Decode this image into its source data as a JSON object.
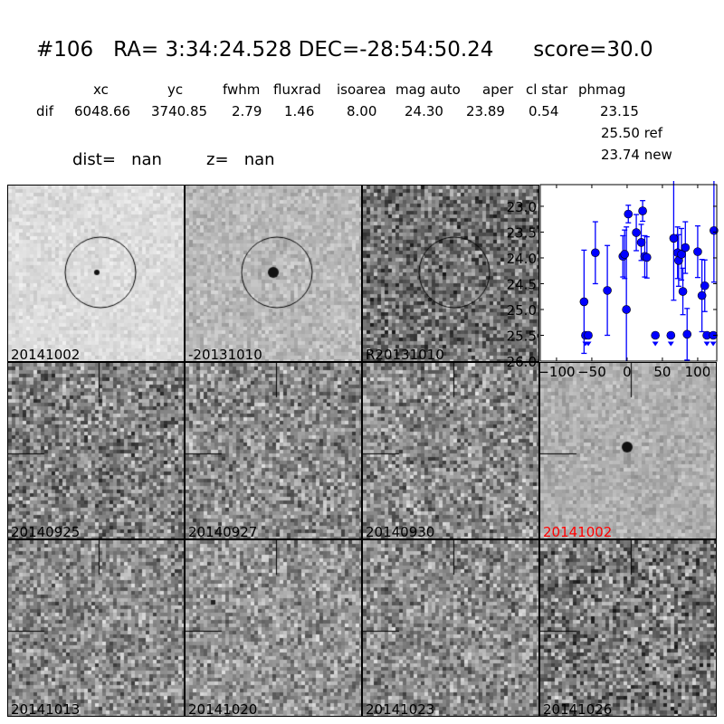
{
  "title": {
    "id": "#106",
    "ra": "RA= 3:34:24.528",
    "dec": "DEC=-28:54:50.24",
    "score": "score=30.0"
  },
  "table": {
    "headers": [
      "xc",
      "yc",
      "fwhm",
      "fluxrad",
      "isoarea",
      "mag auto",
      "aper",
      "cl star",
      "phmag"
    ],
    "row_label": "dif",
    "values": [
      "6048.66",
      "3740.85",
      "2.79",
      "1.46",
      "8.00",
      "24.30",
      "23.89",
      "0.54",
      "23.15"
    ],
    "ref": "25.50 ref",
    "new": "23.74 new"
  },
  "dist": "dist=   nan",
  "z": "z=   nan",
  "panels": [
    {
      "label": "20141002",
      "circle": true
    },
    {
      "label": "-20131010",
      "circle": true
    },
    {
      "label": "R20131010",
      "circle": true
    },
    {
      "label": "20140925"
    },
    {
      "label": "20140927"
    },
    {
      "label": "20140930"
    },
    {
      "label": "20141002",
      "color": "#ff0000"
    },
    {
      "label": "20141013"
    },
    {
      "label": "20141020"
    },
    {
      "label": "20141023"
    },
    {
      "label": "20141026"
    }
  ],
  "chart_data": {
    "type": "scatter",
    "xlim": [
      -123,
      127
    ],
    "ylim": [
      26.0,
      22.58
    ],
    "y_inverted": true,
    "xticks": [
      -100,
      -50,
      0,
      50,
      100
    ],
    "yticks": [
      23.0,
      23.5,
      24.0,
      24.5,
      25.0,
      25.5,
      26.0
    ],
    "xtick_labels": [
      "−100",
      "−50",
      "0",
      "50",
      "100"
    ],
    "ytick_labels": [
      "23.0",
      "23.5",
      "24.0",
      "24.5",
      "25.0",
      "25.5",
      "26.0"
    ],
    "color": "#0000ff",
    "points": [
      {
        "x": -61,
        "y": 24.85,
        "err": 1.0
      },
      {
        "x": -45,
        "y": 23.9,
        "err": 0.6
      },
      {
        "x": -28,
        "y": 24.63,
        "err": 0.87
      },
      {
        "x": -6,
        "y": 23.97,
        "err": 0.4
      },
      {
        "x": -3.5,
        "y": 23.93,
        "err": 0.47
      },
      {
        "x": -1,
        "y": 25.0,
        "err": 1.6
      },
      {
        "x": 1.7,
        "y": 23.15,
        "err": 0.17
      },
      {
        "x": 13,
        "y": 23.51,
        "err": 0.35
      },
      {
        "x": 20,
        "y": 23.7,
        "err": 0.35
      },
      {
        "x": 22,
        "y": 23.09,
        "err": 0.2
      },
      {
        "x": 25,
        "y": 23.97,
        "err": 0.4
      },
      {
        "x": 28,
        "y": 23.99,
        "err": 0.4
      },
      {
        "x": 66,
        "y": 23.62,
        "err": 1.2
      },
      {
        "x": 71.5,
        "y": 23.9,
        "err": 0.5
      },
      {
        "x": 73,
        "y": 24.05,
        "err": 0.5
      },
      {
        "x": 77,
        "y": 23.93,
        "err": 0.5
      },
      {
        "x": 79,
        "y": 24.65,
        "err": 0.45
      },
      {
        "x": 82.5,
        "y": 23.8,
        "err": 0.5
      },
      {
        "x": 85,
        "y": 25.48,
        "err": 0.5
      },
      {
        "x": 100,
        "y": 23.88,
        "err": 0.5
      },
      {
        "x": 106,
        "y": 24.73,
        "err": 0.7
      },
      {
        "x": 110,
        "y": 24.54,
        "err": 0.5
      },
      {
        "x": 123,
        "y": 23.47,
        "err": 1.0
      }
    ],
    "upper_limits": [
      {
        "x": -59,
        "y": 25.5
      },
      {
        "x": -55,
        "y": 25.5
      },
      {
        "x": 40,
        "y": 25.5
      },
      {
        "x": 62,
        "y": 25.5
      },
      {
        "x": 113,
        "y": 25.5
      },
      {
        "x": 122,
        "y": 25.5
      }
    ]
  }
}
